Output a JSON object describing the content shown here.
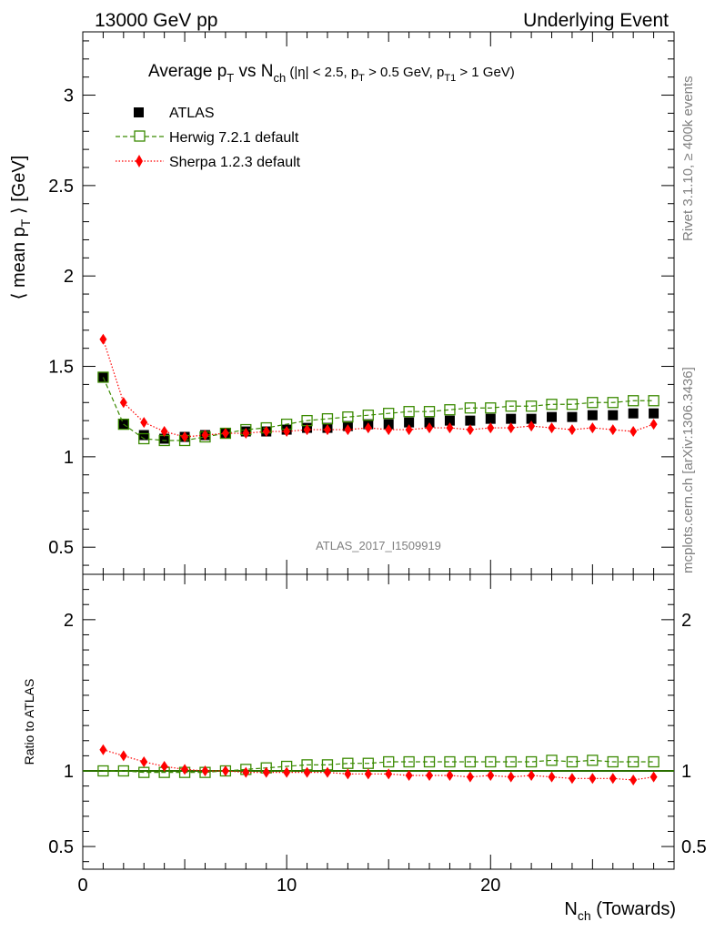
{
  "header": {
    "left": "13000 GeV pp",
    "right": "Underlying Event"
  },
  "side_labels": {
    "rivet": "Rivet 3.1.10, ≥ 400k events",
    "mcplots": "mcplots.cern.ch [arXiv:1306.3436]"
  },
  "watermark": "ATLAS_2017_I1509919",
  "colors": {
    "atlas": "#000000",
    "herwig": "#3a8a00",
    "sherpa": "#ff0000"
  },
  "chart_data": [
    {
      "type": "scatter",
      "panel": "main",
      "title": "Average p_T vs N_ch (|η| < 2.5, p_T > 0.5 GeV, p_T1 > 1 GeV)",
      "ylabel": "⟨ mean p_T ⟩ [GeV]",
      "xlabel": "N_ch (Towards)",
      "xlim": [
        0,
        29
      ],
      "ylim": [
        0.35,
        3.35
      ],
      "yticks": [
        0.5,
        1,
        1.5,
        2,
        2.5,
        3
      ],
      "xticks": [
        0,
        10,
        20
      ],
      "legend": [
        "ATLAS",
        "Herwig 7.2.1 default",
        "Sherpa 1.2.3 default"
      ],
      "x": [
        1,
        2,
        3,
        4,
        5,
        6,
        7,
        8,
        9,
        10,
        11,
        12,
        13,
        14,
        15,
        16,
        17,
        18,
        19,
        20,
        21,
        22,
        23,
        24,
        25,
        26,
        27,
        28
      ],
      "series": [
        {
          "name": "ATLAS",
          "values": [
            1.44,
            1.18,
            1.12,
            1.1,
            1.11,
            1.12,
            1.13,
            1.14,
            1.14,
            1.15,
            1.16,
            1.16,
            1.17,
            1.18,
            1.18,
            1.19,
            1.19,
            1.2,
            1.2,
            1.21,
            1.21,
            1.21,
            1.22,
            1.22,
            1.23,
            1.23,
            1.24,
            1.24
          ]
        },
        {
          "name": "Herwig 7.2.1 default",
          "values": [
            1.44,
            1.18,
            1.1,
            1.09,
            1.09,
            1.11,
            1.13,
            1.15,
            1.16,
            1.18,
            1.2,
            1.21,
            1.22,
            1.23,
            1.24,
            1.25,
            1.25,
            1.26,
            1.27,
            1.27,
            1.28,
            1.28,
            1.29,
            1.29,
            1.3,
            1.3,
            1.31,
            1.31
          ]
        },
        {
          "name": "Sherpa 1.2.3 default",
          "values": [
            1.65,
            1.3,
            1.19,
            1.14,
            1.11,
            1.12,
            1.13,
            1.13,
            1.14,
            1.14,
            1.15,
            1.15,
            1.15,
            1.16,
            1.15,
            1.15,
            1.16,
            1.16,
            1.15,
            1.16,
            1.16,
            1.17,
            1.16,
            1.15,
            1.16,
            1.15,
            1.14,
            1.18
          ]
        }
      ]
    },
    {
      "type": "scatter",
      "panel": "ratio",
      "ylabel": "Ratio to ATLAS",
      "xlabel": "N_ch (Towards)",
      "xlim": [
        0,
        29
      ],
      "ylim": [
        0.35,
        2.3
      ],
      "yticks": [
        0.5,
        1,
        2
      ],
      "x": [
        1,
        2,
        3,
        4,
        5,
        6,
        7,
        8,
        9,
        10,
        11,
        12,
        13,
        14,
        15,
        16,
        17,
        18,
        19,
        20,
        21,
        22,
        23,
        24,
        25,
        26,
        27,
        28
      ],
      "series": [
        {
          "name": "ATLAS",
          "values": [
            1,
            1,
            1,
            1,
            1,
            1,
            1,
            1,
            1,
            1,
            1,
            1,
            1,
            1,
            1,
            1,
            1,
            1,
            1,
            1,
            1,
            1,
            1,
            1,
            1,
            1,
            1,
            1
          ]
        },
        {
          "name": "Herwig 7.2.1 default",
          "values": [
            1.0,
            1.0,
            0.99,
            0.99,
            0.99,
            0.99,
            1.0,
            1.01,
            1.02,
            1.03,
            1.04,
            1.04,
            1.05,
            1.05,
            1.06,
            1.06,
            1.06,
            1.06,
            1.06,
            1.06,
            1.06,
            1.06,
            1.07,
            1.06,
            1.07,
            1.06,
            1.06,
            1.06
          ]
        },
        {
          "name": "Sherpa 1.2.3 default",
          "values": [
            1.14,
            1.1,
            1.06,
            1.03,
            1.01,
            1.0,
            1.0,
            0.99,
            0.99,
            0.99,
            0.99,
            0.99,
            0.98,
            0.98,
            0.98,
            0.97,
            0.97,
            0.97,
            0.96,
            0.97,
            0.96,
            0.97,
            0.96,
            0.95,
            0.95,
            0.95,
            0.94,
            0.96
          ]
        }
      ]
    }
  ]
}
